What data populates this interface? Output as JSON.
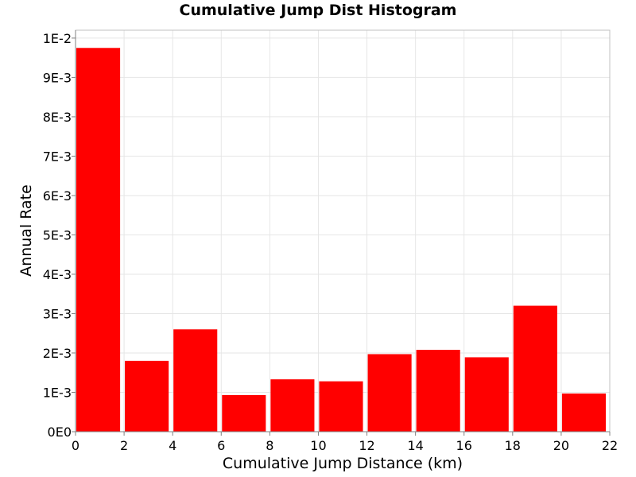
{
  "chart_data": {
    "type": "bar",
    "title": "Cumulative Jump Dist Histogram",
    "xlabel": "Cumulative Jump Distance (km)",
    "ylabel": "Annual Rate",
    "xlim": [
      0,
      22
    ],
    "ylim": [
      0,
      0.0102
    ],
    "grid": true,
    "legend": "none",
    "bar_color": "#ff0000",
    "x_ticks": [
      0,
      2,
      4,
      6,
      8,
      10,
      12,
      14,
      16,
      18,
      20,
      22
    ],
    "x_tick_labels": [
      "0",
      "2",
      "4",
      "6",
      "8",
      "10",
      "12",
      "14",
      "16",
      "18",
      "20",
      "22"
    ],
    "y_ticks": [
      0,
      0.001,
      0.002,
      0.003,
      0.004,
      0.005,
      0.006,
      0.007,
      0.008,
      0.009,
      0.01
    ],
    "y_tick_labels": [
      "0E0",
      "1E-3",
      "2E-3",
      "3E-3",
      "4E-3",
      "5E-3",
      "6E-3",
      "7E-3",
      "8E-3",
      "9E-3",
      "1E-2"
    ],
    "bins": [
      {
        "x0": 0,
        "x1": 2,
        "value": 0.00975
      },
      {
        "x0": 2,
        "x1": 4,
        "value": 0.0018
      },
      {
        "x0": 4,
        "x1": 6,
        "value": 0.0026
      },
      {
        "x0": 6,
        "x1": 8,
        "value": 0.00093
      },
      {
        "x0": 8,
        "x1": 10,
        "value": 0.00133
      },
      {
        "x0": 10,
        "x1": 12,
        "value": 0.00128
      },
      {
        "x0": 12,
        "x1": 14,
        "value": 0.00197
      },
      {
        "x0": 14,
        "x1": 16,
        "value": 0.00208
      },
      {
        "x0": 16,
        "x1": 18,
        "value": 0.00189
      },
      {
        "x0": 18,
        "x1": 20,
        "value": 0.0032
      },
      {
        "x0": 20,
        "x1": 22,
        "value": 0.00097
      }
    ]
  }
}
